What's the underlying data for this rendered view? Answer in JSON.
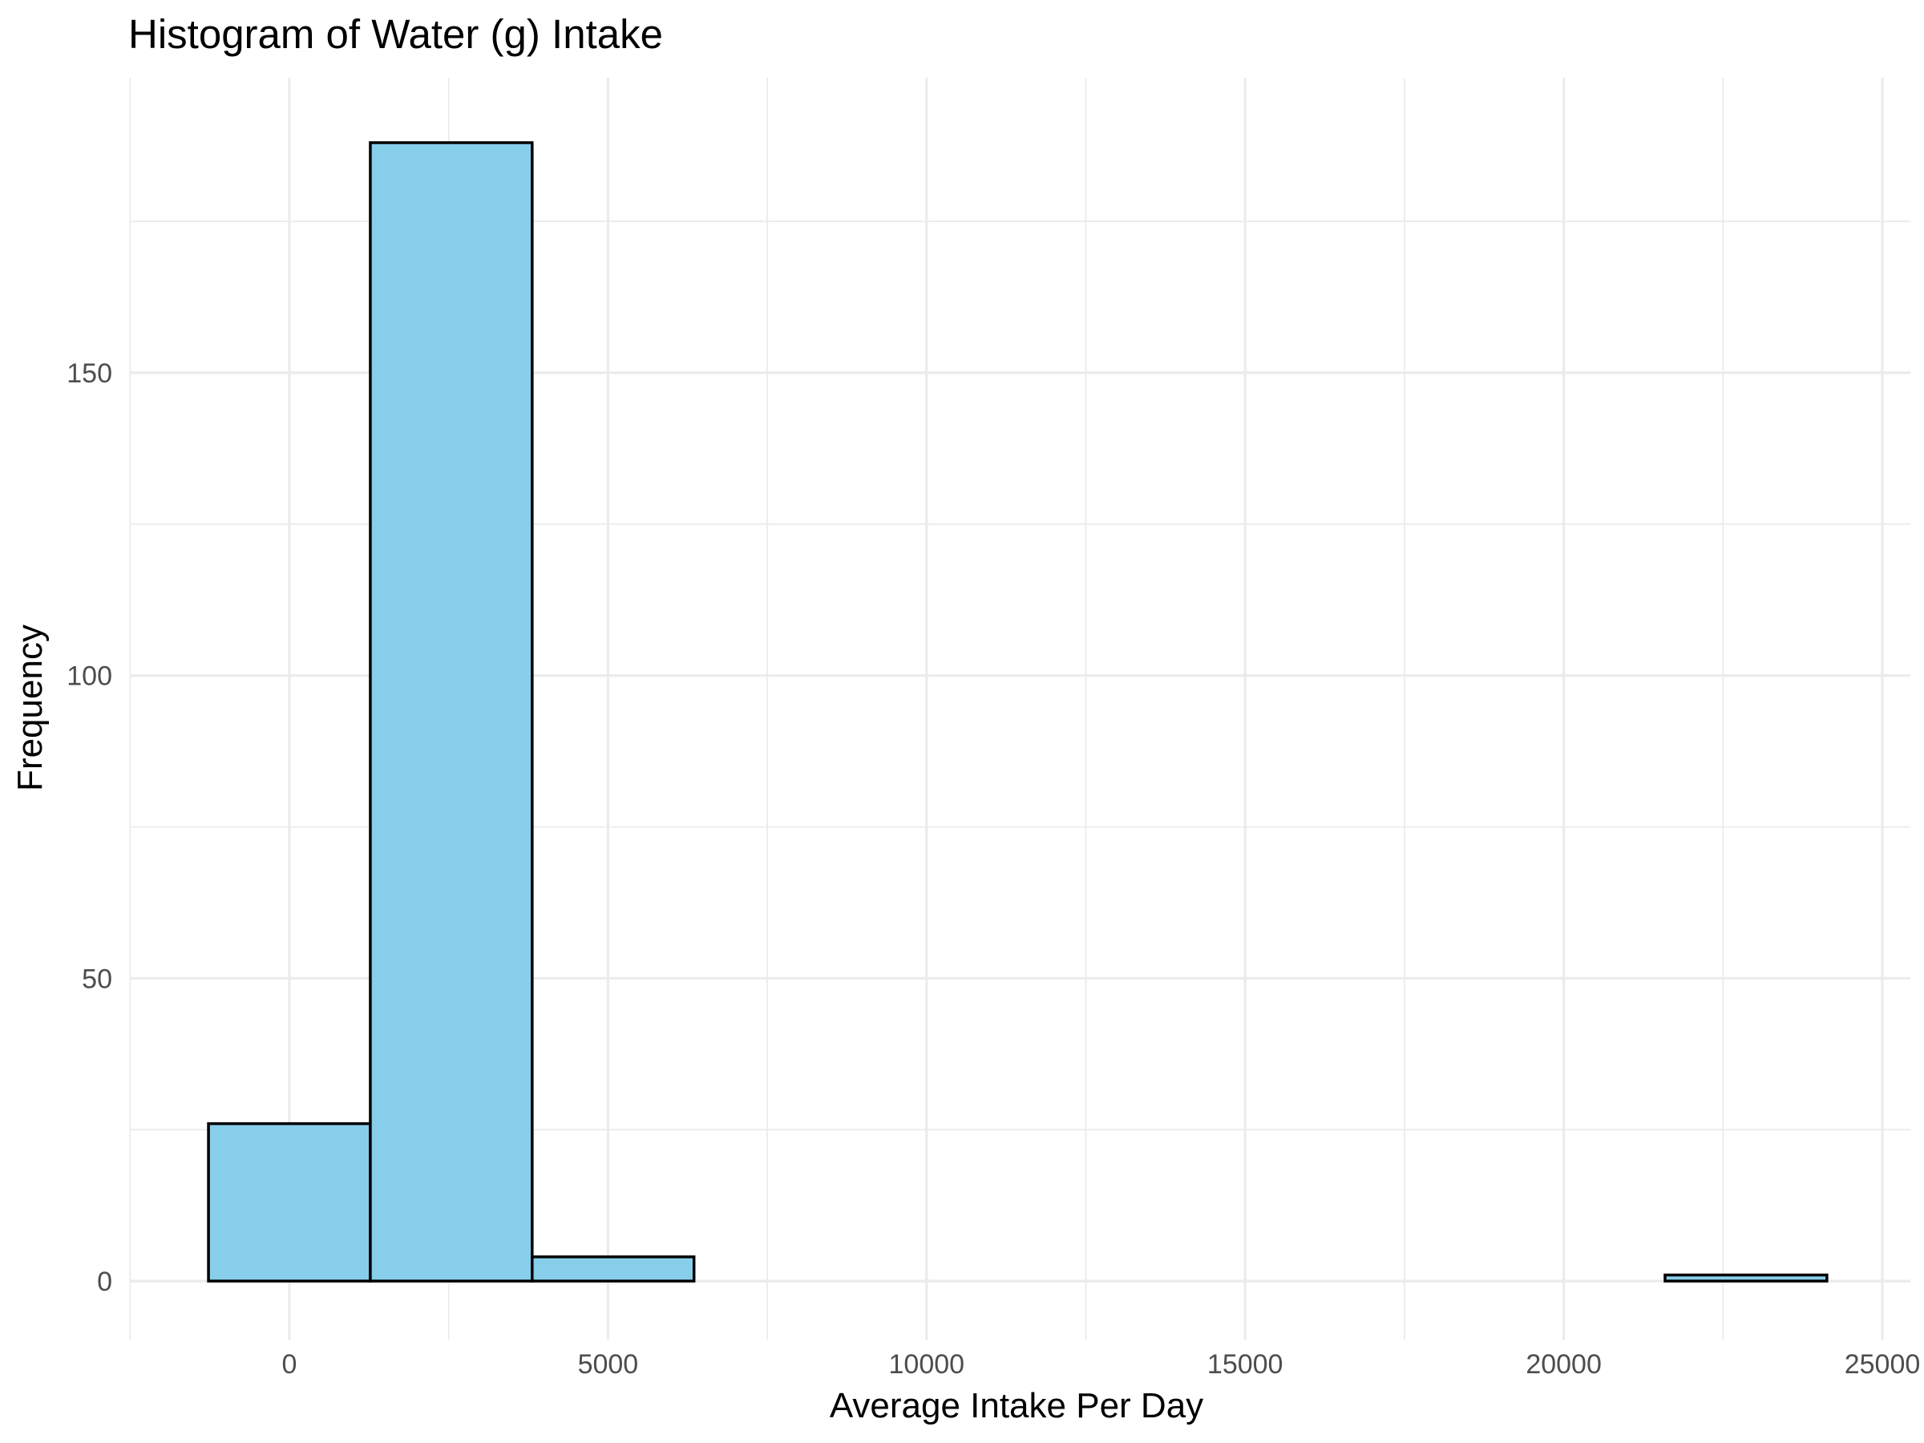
{
  "chart_data": {
    "type": "bar",
    "title": "Histogram of Water (g) Intake",
    "xlabel": "Average Intake Per Day",
    "ylabel": "Frequency",
    "xlim": [
      -2500,
      25000
    ],
    "ylim": [
      -10,
      195
    ],
    "x_ticks": [
      0,
      5000,
      10000,
      15000,
      20000,
      25000
    ],
    "x_tick_labels": [
      "0",
      "5000",
      "10000",
      "15000",
      "20000",
      "25000"
    ],
    "y_ticks": [
      0,
      50,
      100,
      150
    ],
    "y_tick_labels": [
      "0",
      "50",
      "100",
      "150"
    ],
    "grid": true,
    "bar_fill": "#87ceeb",
    "bar_outline": "#000000",
    "bins": [
      {
        "x0": -1270,
        "x1": 1270,
        "count": 26
      },
      {
        "x0": 1270,
        "x1": 3810,
        "count": 188
      },
      {
        "x0": 3810,
        "x1": 6350,
        "count": 4
      },
      {
        "x0": 6350,
        "x1": 8890,
        "count": 0
      },
      {
        "x0": 8890,
        "x1": 11430,
        "count": 0
      },
      {
        "x0": 11430,
        "x1": 13970,
        "count": 0
      },
      {
        "x0": 13970,
        "x1": 16510,
        "count": 0
      },
      {
        "x0": 16510,
        "x1": 19050,
        "count": 0
      },
      {
        "x0": 19050,
        "x1": 21590,
        "count": 0
      },
      {
        "x0": 21590,
        "x1": 24130,
        "count": 1
      }
    ]
  }
}
